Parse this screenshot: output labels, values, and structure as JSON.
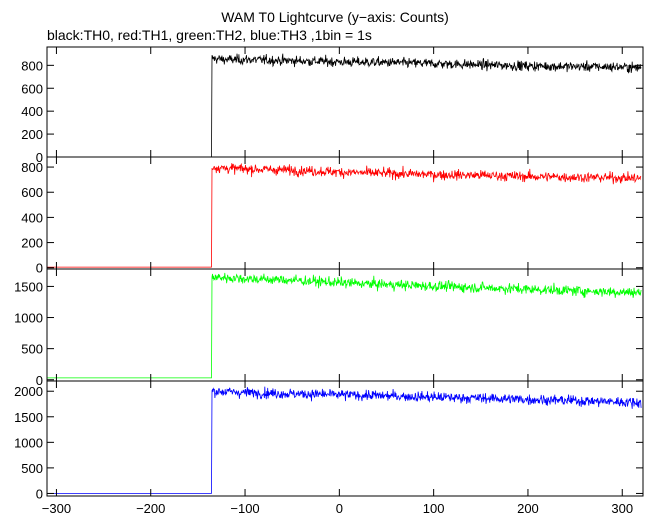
{
  "chart_data": {
    "type": "line",
    "title": "WAM T0 Lightcurve (y−axis: Counts)",
    "subtitle": "black:TH0, red:TH1, green:TH2, blue:TH3 ,1bin = 1s",
    "xlabel": "",
    "ylabel": "",
    "xlim": [
      -310,
      322
    ],
    "x_ticks": [
      "−300",
      "−200",
      "−100",
      "0",
      "100",
      "200",
      "300"
    ],
    "x_tick_values": [
      -300,
      -200,
      -100,
      0,
      100,
      200,
      300
    ],
    "grid": false,
    "panels": [
      {
        "series_name": "TH0",
        "color": "#000000",
        "ylim": [
          0,
          960
        ],
        "y_ticks": [
          "0",
          "200",
          "400",
          "600",
          "800"
        ],
        "y_tick_values": [
          0,
          200,
          400,
          600,
          800
        ],
        "pre_trigger_level": 0,
        "step_x": -135,
        "x": [
          -135,
          -120,
          -100,
          -50,
          0,
          50,
          100,
          150,
          200,
          250,
          300,
          320
        ],
        "y": [
          860,
          850,
          850,
          840,
          830,
          825,
          815,
          805,
          795,
          790,
          785,
          780
        ]
      },
      {
        "series_name": "TH1",
        "color": "#ff0000",
        "ylim": [
          -10,
          880
        ],
        "y_ticks": [
          "0",
          "200",
          "400",
          "600",
          "800"
        ],
        "y_tick_values": [
          0,
          200,
          400,
          600,
          800
        ],
        "pre_trigger_level": 5,
        "step_x": -135,
        "x": [
          -135,
          -120,
          -100,
          -50,
          0,
          50,
          100,
          150,
          200,
          250,
          300,
          320
        ],
        "y": [
          800,
          790,
          785,
          775,
          760,
          750,
          740,
          735,
          725,
          720,
          715,
          710
        ]
      },
      {
        "series_name": "TH2",
        "color": "#00ff00",
        "ylim": [
          -20,
          1780
        ],
        "y_ticks": [
          "0",
          "500",
          "1000",
          "1500"
        ],
        "y_tick_values": [
          0,
          500,
          1000,
          1500
        ],
        "pre_trigger_level": 30,
        "step_x": -135,
        "x": [
          -135,
          -120,
          -100,
          -50,
          0,
          50,
          100,
          150,
          200,
          250,
          300,
          320
        ],
        "y": [
          1650,
          1640,
          1625,
          1600,
          1560,
          1530,
          1505,
          1480,
          1455,
          1430,
          1410,
          1400
        ]
      },
      {
        "series_name": "TH3",
        "color": "#0000ff",
        "ylim": [
          -50,
          2200
        ],
        "y_ticks": [
          "0",
          "500",
          "1000",
          "1500",
          "2000"
        ],
        "y_tick_values": [
          0,
          500,
          1000,
          1500,
          2000
        ],
        "pre_trigger_level": 0,
        "step_x": -135,
        "x": [
          -135,
          -120,
          -100,
          -50,
          0,
          50,
          100,
          150,
          200,
          250,
          300,
          320
        ],
        "y": [
          2000,
          1990,
          1975,
          1950,
          1930,
          1910,
          1885,
          1865,
          1840,
          1815,
          1790,
          1780
        ]
      }
    ]
  }
}
